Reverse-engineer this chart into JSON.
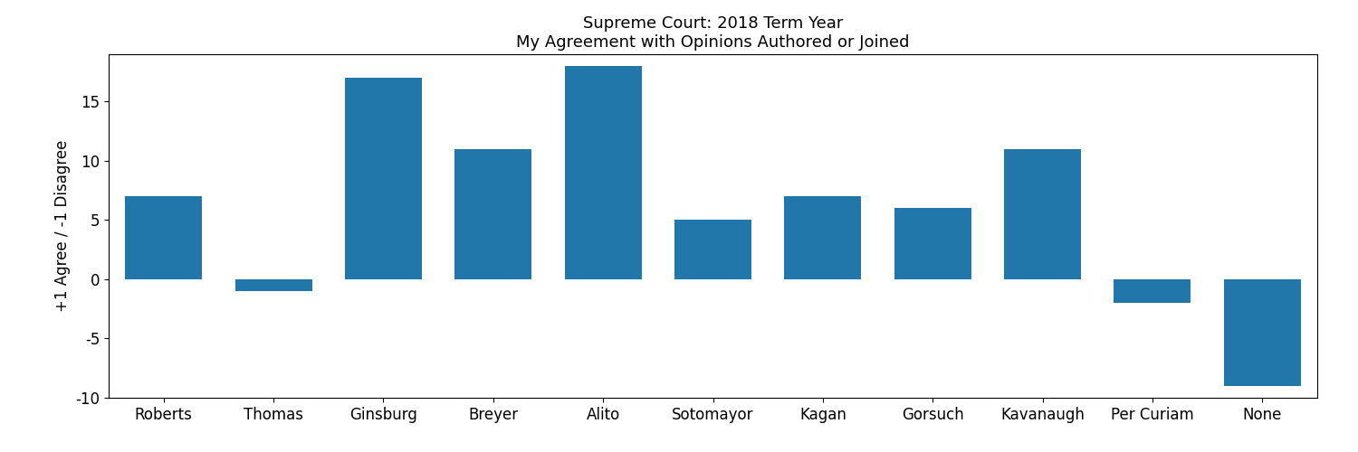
{
  "title_line1": "Supreme Court: 2018 Term Year",
  "title_line2": "My Agreement with Opinions Authored or Joined",
  "categories": [
    "Roberts",
    "Thomas",
    "Ginsburg",
    "Breyer",
    "Alito",
    "Sotomayor",
    "Kagan",
    "Gorsuch",
    "Kavanaugh",
    "Per Curiam",
    "None"
  ],
  "values": [
    7,
    -1,
    17,
    11,
    18,
    5,
    7,
    6,
    11,
    -2,
    -9
  ],
  "bar_color": "#2277aa",
  "ylabel": "+1 Agree / -1 Disagree",
  "ylim": [
    -10,
    19
  ],
  "yticks": [
    -10,
    -5,
    0,
    5,
    10,
    15
  ],
  "figsize": [
    15,
    5
  ],
  "dpi": 100,
  "bar_width": 0.7,
  "title_fontsize": 13,
  "tick_fontsize": 12,
  "ylabel_fontsize": 12
}
